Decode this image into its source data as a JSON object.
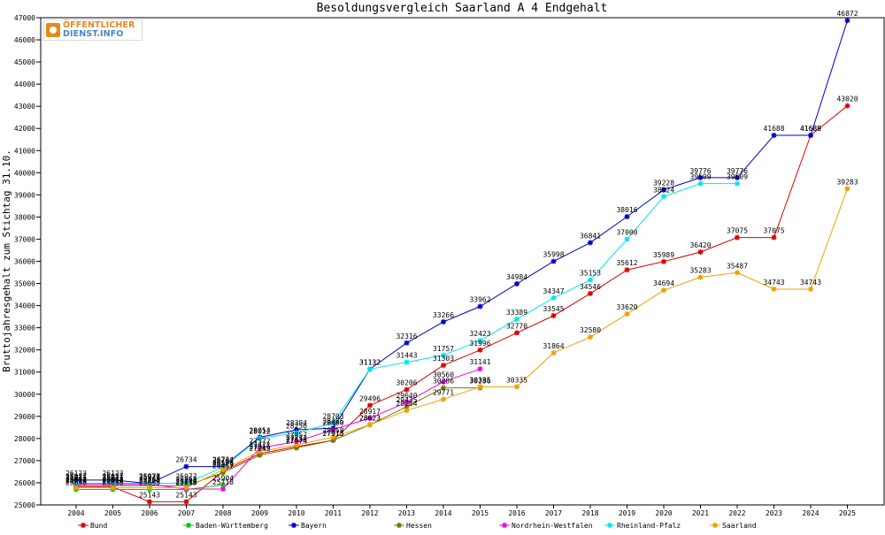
{
  "logo": {
    "line1": "ÖFFENTLICHER",
    "line2": "DIENST.INFO"
  },
  "chart_data": {
    "type": "line",
    "title": "Besoldungsvergleich Saarland A 4 Endgehalt",
    "xlabel": "",
    "ylabel": "Bruttojahresgehalt zum Stichtag 31.10.",
    "ylim": [
      25000,
      47000
    ],
    "yticks": [
      25000,
      26000,
      27000,
      28000,
      29000,
      30000,
      31000,
      32000,
      33000,
      34000,
      35000,
      36000,
      37000,
      38000,
      39000,
      40000,
      41000,
      42000,
      43000,
      44000,
      45000,
      46000,
      47000
    ],
    "x": [
      2004,
      2005,
      2006,
      2007,
      2008,
      2009,
      2010,
      2011,
      2012,
      2013,
      2014,
      2015,
      2016,
      2017,
      2018,
      2019,
      2020,
      2021,
      2022,
      2023,
      2024,
      2025
    ],
    "grid": false,
    "legend_position": "bottom",
    "series": [
      {
        "name": "Bund",
        "color": "#dd0000",
        "values": [
          25812,
          25812,
          25143,
          25143,
          26529,
          27316,
          27636,
          27915,
          29496,
          30206,
          31303,
          31996,
          32770,
          33545,
          34546,
          35612,
          35989,
          36420,
          37075,
          37075,
          41689,
          43020
        ]
      },
      {
        "name": "Baden-Württemberg",
        "color": "#00cc00",
        "values": [
          25698,
          25698,
          25698,
          25698,
          25904,
          null,
          null,
          null,
          null,
          null,
          null,
          null,
          null,
          null,
          null,
          null,
          null,
          null,
          null,
          null,
          null,
          null
        ]
      },
      {
        "name": "Bayern",
        "color": "#0000cc",
        "values": [
          26123,
          26123,
          25970,
          26734,
          26734,
          28054,
          28394,
          28466,
          31132,
          32316,
          33266,
          33962,
          34984,
          35998,
          36841,
          38016,
          39228,
          39776,
          39776,
          41688,
          41688,
          46872
        ]
      },
      {
        "name": "Hessen",
        "color": "#777700",
        "values": [
          25868,
          25868,
          25868,
          25868,
          26457,
          27243,
          27574,
          27915,
          28623,
          29435,
          30286,
          30286,
          null,
          null,
          null,
          null,
          null,
          null,
          null,
          null,
          null,
          null
        ]
      },
      {
        "name": "Nordrhein-Westfalen",
        "color": "#ee00ee",
        "values": [
          25931,
          25931,
          25931,
          25718,
          25718,
          27572,
          27857,
          28400,
          28917,
          29640,
          30560,
          31141,
          null,
          null,
          null,
          null,
          null,
          null,
          null,
          null,
          null,
          null
        ]
      },
      {
        "name": "Rheinland-Pfalz",
        "color": "#00e5ee",
        "values": [
          25977,
          25977,
          25977,
          25977,
          26702,
          28012,
          28256,
          28703,
          31132,
          31443,
          31757,
          32423,
          33389,
          34347,
          35153,
          37000,
          38924,
          39509,
          39509,
          null,
          null,
          null
        ]
      },
      {
        "name": "Saarland",
        "color": "#f0a000",
        "values": [
          25774,
          25774,
          25774,
          25774,
          26593,
          27421,
          27712,
          28058,
          28623,
          29264,
          29771,
          30335,
          30335,
          31864,
          32580,
          33620,
          34694,
          35283,
          35487,
          34743,
          34743,
          39283
        ]
      }
    ]
  }
}
